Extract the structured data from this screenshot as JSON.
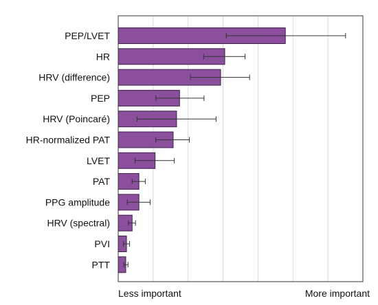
{
  "chart_data": {
    "type": "bar",
    "orientation": "horizontal",
    "categories": [
      "PEP/LVET",
      "HR",
      "HRV (difference)",
      "PEP",
      "HRV (Poincaré)",
      "HR-normalized PAT",
      "LVET",
      "PAT",
      "PPG amplitude",
      "HRV (spectral)",
      "PVI",
      "PTT"
    ],
    "values": [
      0.444,
      0.283,
      0.272,
      0.163,
      0.155,
      0.146,
      0.098,
      0.055,
      0.055,
      0.037,
      0.022,
      0.02
    ],
    "error_low": [
      0.287,
      0.227,
      0.192,
      0.1,
      0.05,
      0.1,
      0.045,
      0.037,
      0.024,
      0.027,
      0.014,
      0.015
    ],
    "error_high": [
      0.604,
      0.337,
      0.349,
      0.228,
      0.26,
      0.189,
      0.149,
      0.072,
      0.085,
      0.046,
      0.03,
      0.026
    ],
    "xlim": [
      0,
      0.65
    ],
    "x_tick_count": 7,
    "xlabel_left": "Less important",
    "xlabel_right": "More important",
    "grid": true,
    "bar_color": "#8b4f9e",
    "bar_edge_color": "#3e1f4a",
    "error_color": "#333333",
    "grid_color": "#d9d9d9",
    "axis_color": "#333333"
  }
}
